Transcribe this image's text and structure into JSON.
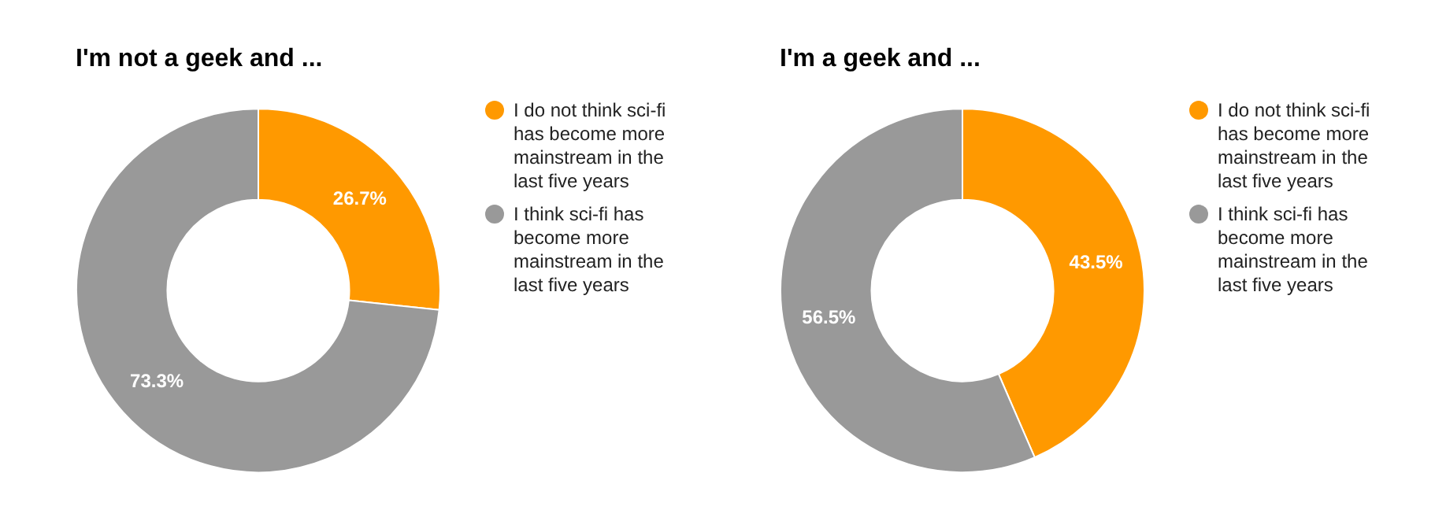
{
  "chart_data": [
    {
      "type": "donut",
      "title": "I'm not a geek and ...",
      "categories": [
        "I do not think sci-fi has become more mainstream in the last five years",
        "I think sci-fi has become more mainstream in the last five years"
      ],
      "values": [
        26.7,
        73.3
      ],
      "value_labels": [
        "26.7%",
        "73.3%"
      ],
      "colors": [
        "#ff9900",
        "#999999"
      ],
      "legend": "right"
    },
    {
      "type": "donut",
      "title": "I'm a geek and ...",
      "categories": [
        "I do not think sci-fi has become more mainstream in the last five years",
        "I think sci-fi has become more mainstream in the last five years"
      ],
      "values": [
        43.5,
        56.5
      ],
      "value_labels": [
        "43.5%",
        "56.5%"
      ],
      "colors": [
        "#ff9900",
        "#999999"
      ],
      "legend": "right"
    }
  ]
}
